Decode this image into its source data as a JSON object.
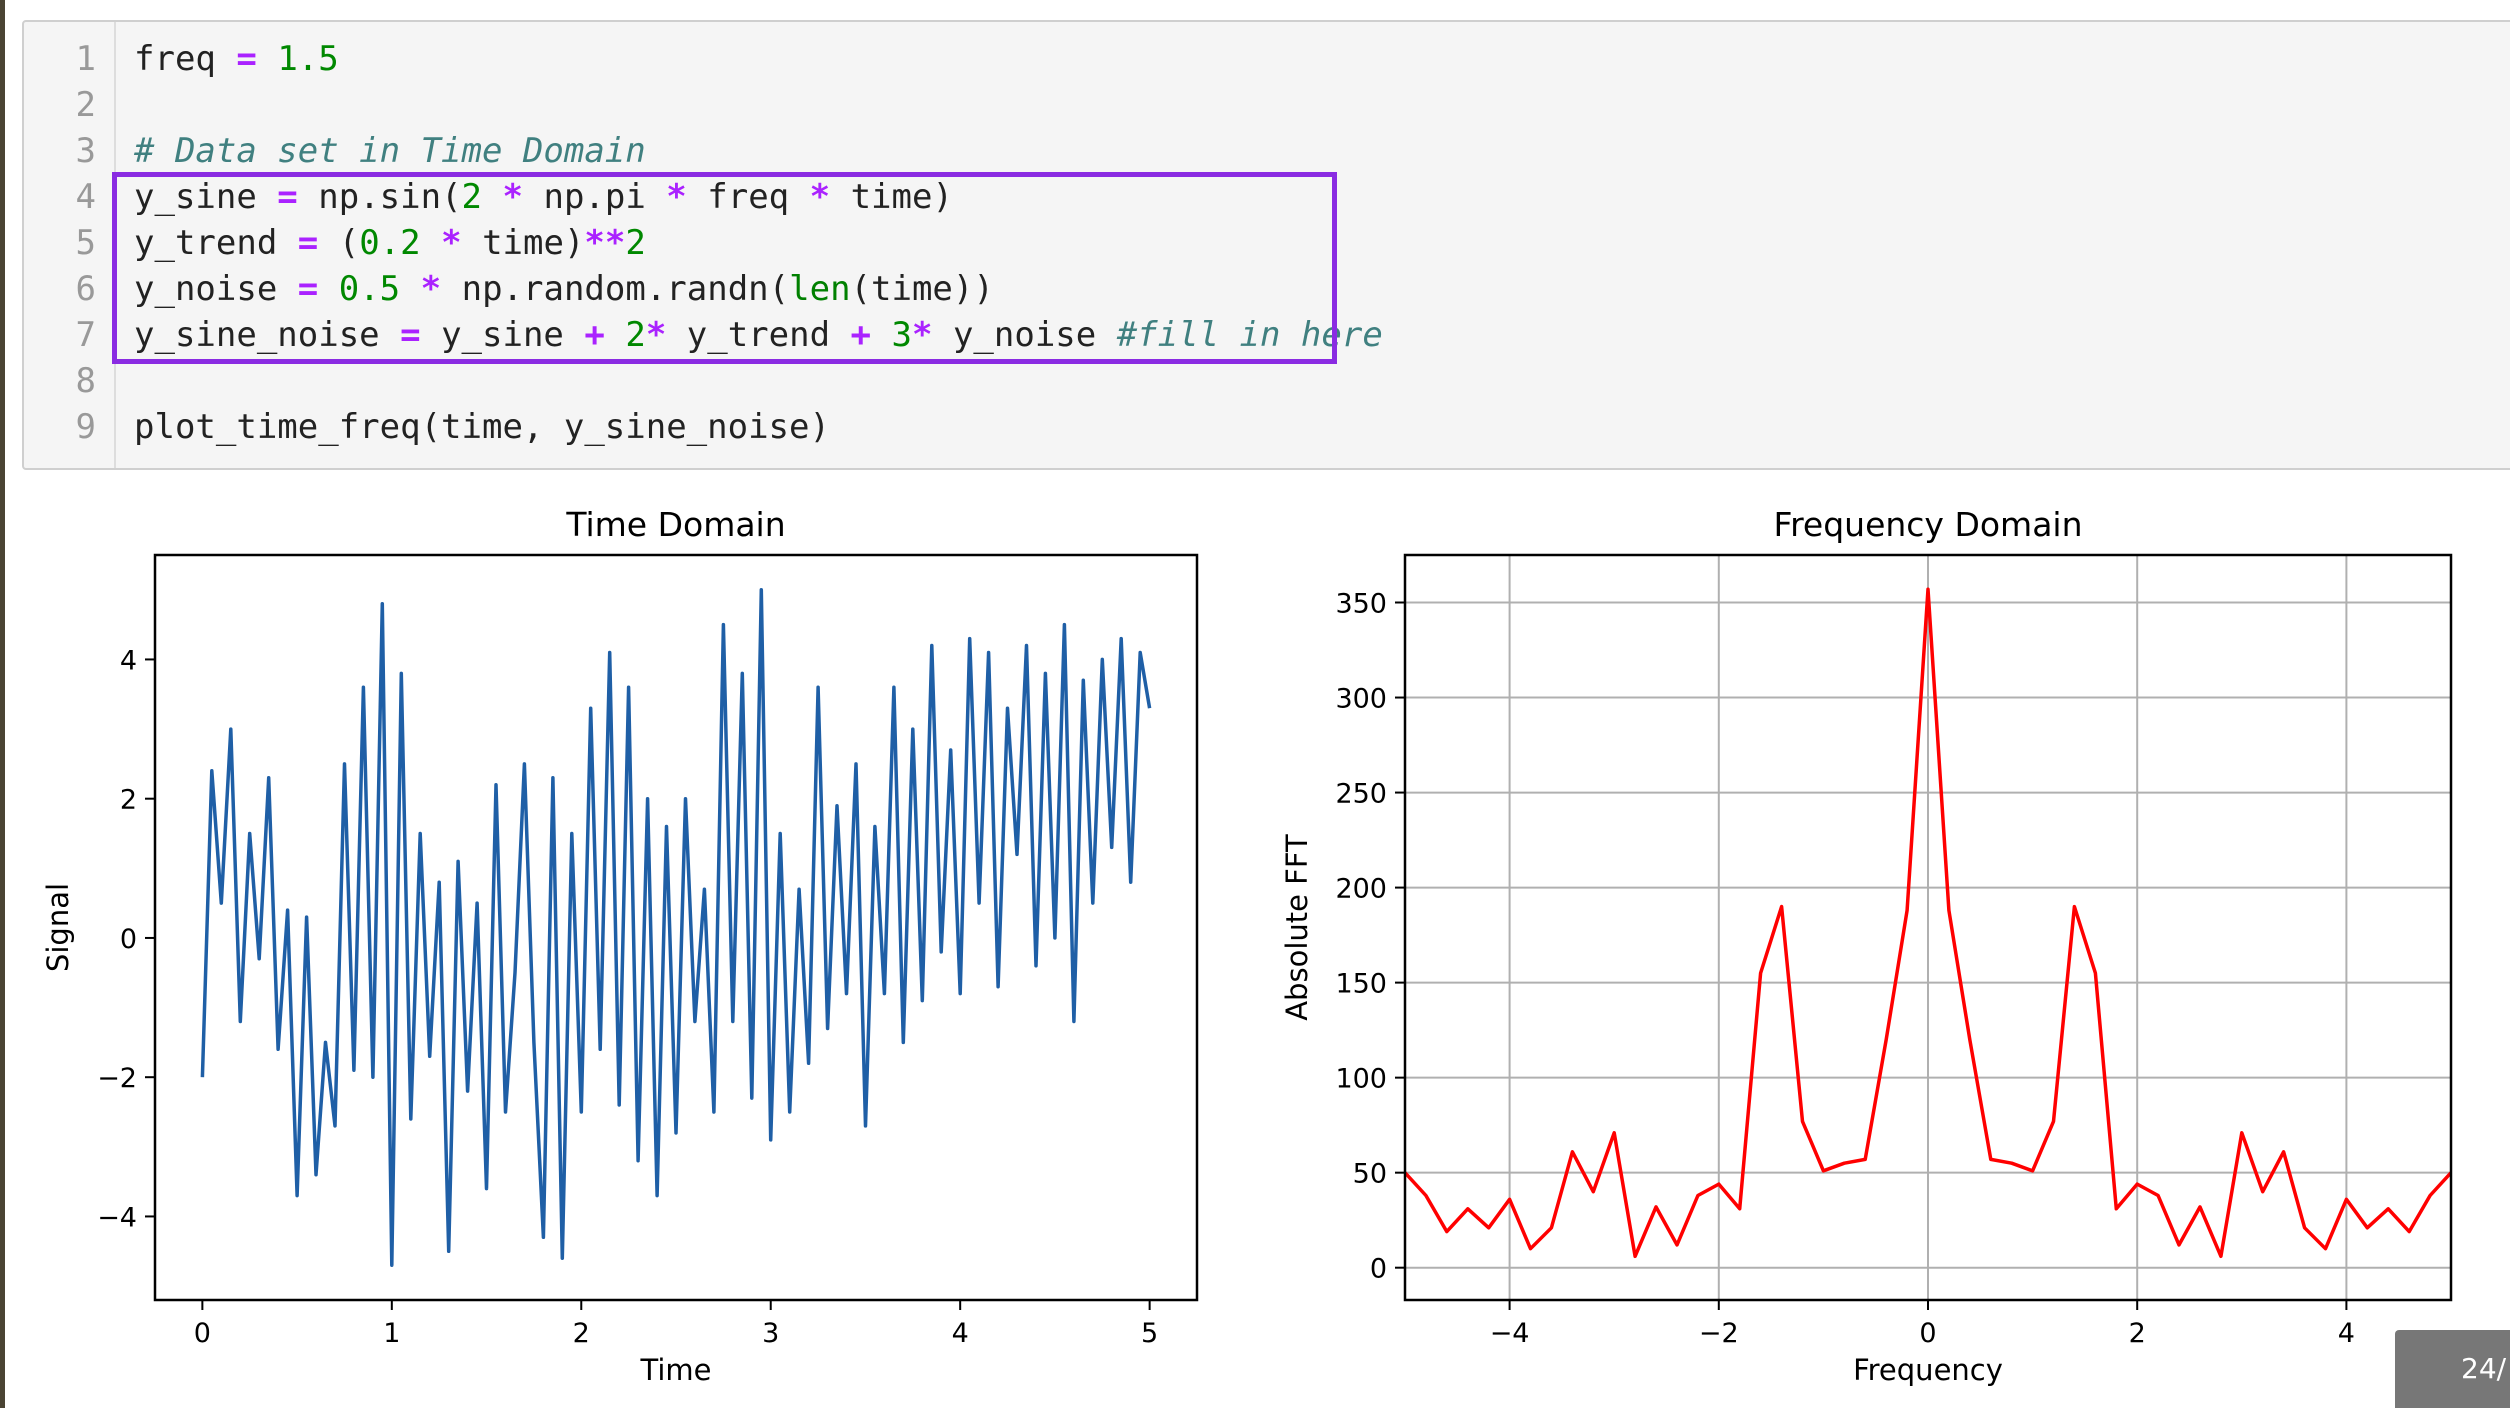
{
  "code_cell": {
    "line_numbers": [
      "1",
      "2",
      "3",
      "4",
      "5",
      "6",
      "7",
      "8",
      "9"
    ],
    "lines": [
      "freq = 1.5",
      "",
      "# Data set in Time Domain",
      "y_sine = np.sin(2 * np.pi * freq * time)",
      "y_trend = (0.2 * time)**2",
      "y_noise = 0.5 * np.random.randn(len(time))",
      "y_sine_noise = y_sine + 2* y_trend + 3* y_noise #fill in here",
      "",
      "plot_time_freq(time, y_sine_noise)"
    ],
    "highlight_color": "#8a2be2"
  },
  "chart_data": [
    {
      "type": "line",
      "title": "Time Domain",
      "xlabel": "Time",
      "ylabel": "Signal",
      "xlim": [
        -0.25,
        5.25
      ],
      "ylim": [
        -5.2,
        5.5
      ],
      "xticks": [
        "0",
        "1",
        "2",
        "3",
        "4",
        "5"
      ],
      "yticks": [
        "4",
        "2",
        "0",
        "−2",
        "−4"
      ],
      "grid": false,
      "color": "#1f5fa6",
      "series": [
        {
          "x": [
            0.0,
            0.05,
            0.1,
            0.15,
            0.2,
            0.25,
            0.3,
            0.35,
            0.4,
            0.45,
            0.5,
            0.55,
            0.6,
            0.65,
            0.7,
            0.75,
            0.8,
            0.85,
            0.9,
            0.95,
            1.0,
            1.05,
            1.1,
            1.15,
            1.2,
            1.25,
            1.3,
            1.35,
            1.4,
            1.45,
            1.5,
            1.55,
            1.6,
            1.65,
            1.7,
            1.75,
            1.8,
            1.85,
            1.9,
            1.95,
            2.0,
            2.05,
            2.1,
            2.15,
            2.2,
            2.25,
            2.3,
            2.35,
            2.4,
            2.45,
            2.5,
            2.55,
            2.6,
            2.65,
            2.7,
            2.75,
            2.8,
            2.85,
            2.9,
            2.95,
            3.0,
            3.05,
            3.1,
            3.15,
            3.2,
            3.25,
            3.3,
            3.35,
            3.4,
            3.45,
            3.5,
            3.55,
            3.6,
            3.65,
            3.7,
            3.75,
            3.8,
            3.85,
            3.9,
            3.95,
            4.0,
            4.05,
            4.1,
            4.15,
            4.2,
            4.25,
            4.3,
            4.35,
            4.4,
            4.45,
            4.5,
            4.55,
            4.6,
            4.65,
            4.7,
            4.75,
            4.8,
            4.85,
            4.9,
            4.95,
            5.0
          ],
          "y": [
            -2.0,
            2.4,
            0.5,
            3.0,
            -1.2,
            1.5,
            -0.3,
            2.3,
            -1.6,
            0.4,
            -3.7,
            0.3,
            -3.4,
            -1.5,
            -2.7,
            2.5,
            -1.9,
            3.6,
            -2.0,
            4.8,
            -4.7,
            3.8,
            -2.6,
            1.5,
            -1.7,
            0.8,
            -4.5,
            1.1,
            -2.2,
            0.5,
            -3.6,
            2.2,
            -2.5,
            -0.5,
            2.5,
            -1.5,
            -4.3,
            2.3,
            -4.6,
            1.5,
            -2.5,
            3.3,
            -1.6,
            4.1,
            -2.4,
            3.6,
            -3.2,
            2.0,
            -3.7,
            1.6,
            -2.8,
            2.0,
            -1.2,
            0.7,
            -2.5,
            4.5,
            -1.2,
            3.8,
            -2.3,
            5.0,
            -2.9,
            1.5,
            -2.5,
            0.7,
            -1.8,
            3.6,
            -1.3,
            1.9,
            -0.8,
            2.5,
            -2.7,
            1.6,
            -0.8,
            3.6,
            -1.5,
            3.0,
            -0.9,
            4.2,
            -0.2,
            2.7,
            -0.8,
            4.3,
            0.5,
            4.1,
            -0.7,
            3.3,
            1.2,
            4.2,
            -0.4,
            3.8,
            0.0,
            4.5,
            -1.2,
            3.7,
            0.5,
            4.0,
            1.3,
            4.3,
            0.8,
            4.1,
            3.3
          ]
        }
      ]
    },
    {
      "type": "line",
      "title": "Frequency Domain",
      "xlabel": "Frequency",
      "ylabel": "Absolute FFT",
      "xlim": [
        -5,
        5
      ],
      "ylim": [
        -17,
        375
      ],
      "xticks": [
        "−4",
        "−2",
        "0",
        "2",
        "4"
      ],
      "yticks": [
        "0",
        "50",
        "100",
        "150",
        "200",
        "250",
        "300",
        "350"
      ],
      "grid": true,
      "color": "#ff0000",
      "series": [
        {
          "x": [
            -5.0,
            -4.8,
            -4.6,
            -4.4,
            -4.2,
            -4.0,
            -3.8,
            -3.6,
            -3.4,
            -3.2,
            -3.0,
            -2.8,
            -2.6,
            -2.4,
            -2.2,
            -2.0,
            -1.8,
            -1.6,
            -1.4,
            -1.2,
            -1.0,
            -0.8,
            -0.6,
            -0.4,
            -0.2,
            0.0,
            0.2,
            0.4,
            0.6,
            0.8,
            1.0,
            1.2,
            1.4,
            1.6,
            1.8,
            2.0,
            2.2,
            2.4,
            2.6,
            2.8,
            3.0,
            3.2,
            3.4,
            3.6,
            3.8,
            4.0,
            4.2,
            4.4,
            4.6,
            4.8,
            5.0
          ],
          "y": [
            50,
            38,
            19,
            31,
            21,
            36,
            10,
            21,
            61,
            40,
            71,
            6,
            32,
            12,
            38,
            44,
            31,
            155,
            190,
            77,
            51,
            55,
            57,
            120,
            188,
            357,
            188,
            120,
            57,
            55,
            51,
            77,
            190,
            155,
            31,
            44,
            38,
            12,
            32,
            6,
            71,
            40,
            61,
            21,
            10,
            36,
            21,
            31,
            19,
            38,
            50
          ]
        }
      ]
    }
  ],
  "page_indicator": "24/"
}
